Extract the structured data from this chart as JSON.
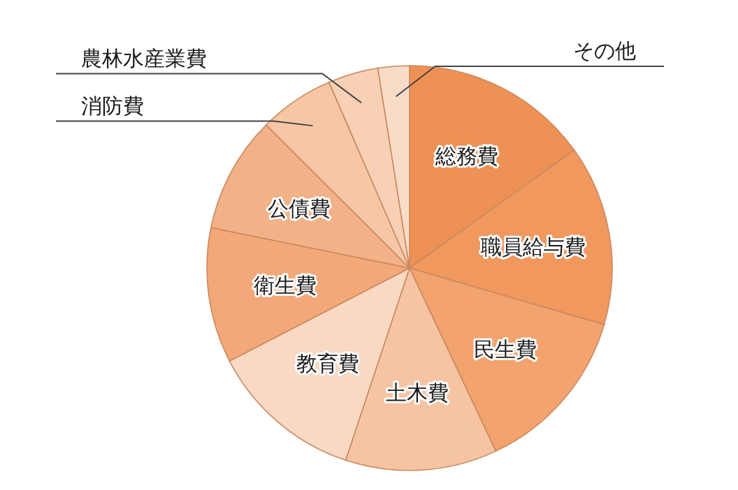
{
  "chart_data": {
    "type": "pie",
    "categories": [
      "総務費",
      "職員給与費",
      "民生費",
      "土木費",
      "教育費",
      "衛生費",
      "公債費",
      "消防費",
      "農林水産業費",
      "その他"
    ],
    "values": [
      15.1,
      14.4,
      13.5,
      12.1,
      12.3,
      10.8,
      9.3,
      6.0,
      4.0,
      2.5
    ],
    "colors": [
      "#ee9155",
      "#f0985e",
      "#f2a36e",
      "#f6c4a2",
      "#f9d8c4",
      "#f2a878",
      "#f3b187",
      "#f7c7a5",
      "#f8d0b5",
      "#f9dcc8"
    ]
  }
}
